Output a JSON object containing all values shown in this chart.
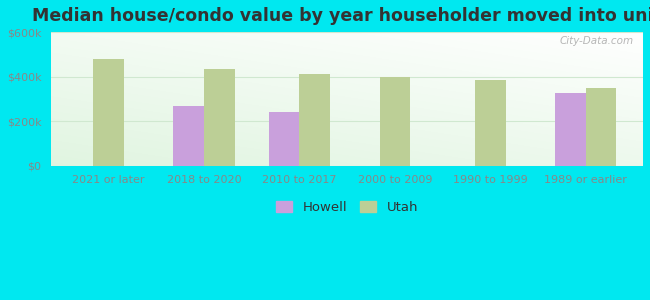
{
  "title": "Median house/condo value by year householder moved into unit",
  "categories": [
    "2021 or later",
    "2018 to 2020",
    "2010 to 2017",
    "2000 to 2009",
    "1990 to 1999",
    "1989 or earlier"
  ],
  "howell_values": [
    null,
    268000,
    243000,
    null,
    null,
    325000
  ],
  "utah_values": [
    480000,
    435000,
    410000,
    400000,
    385000,
    347000
  ],
  "howell_color": "#c9a0dc",
  "utah_color": "#bccf96",
  "bg_outer": "#00e8f0",
  "ylim": [
    0,
    600000
  ],
  "yticks": [
    0,
    200000,
    400000,
    600000
  ],
  "ytick_labels": [
    "$0",
    "$200k",
    "$400k",
    "$600k"
  ],
  "watermark": "City-Data.com",
  "legend_labels": [
    "Howell",
    "Utah"
  ],
  "bar_width": 0.32,
  "title_fontsize": 12.5,
  "tick_fontsize": 8,
  "legend_fontsize": 9.5,
  "grid_color": "#d0e8d0",
  "tick_color": "#888888"
}
